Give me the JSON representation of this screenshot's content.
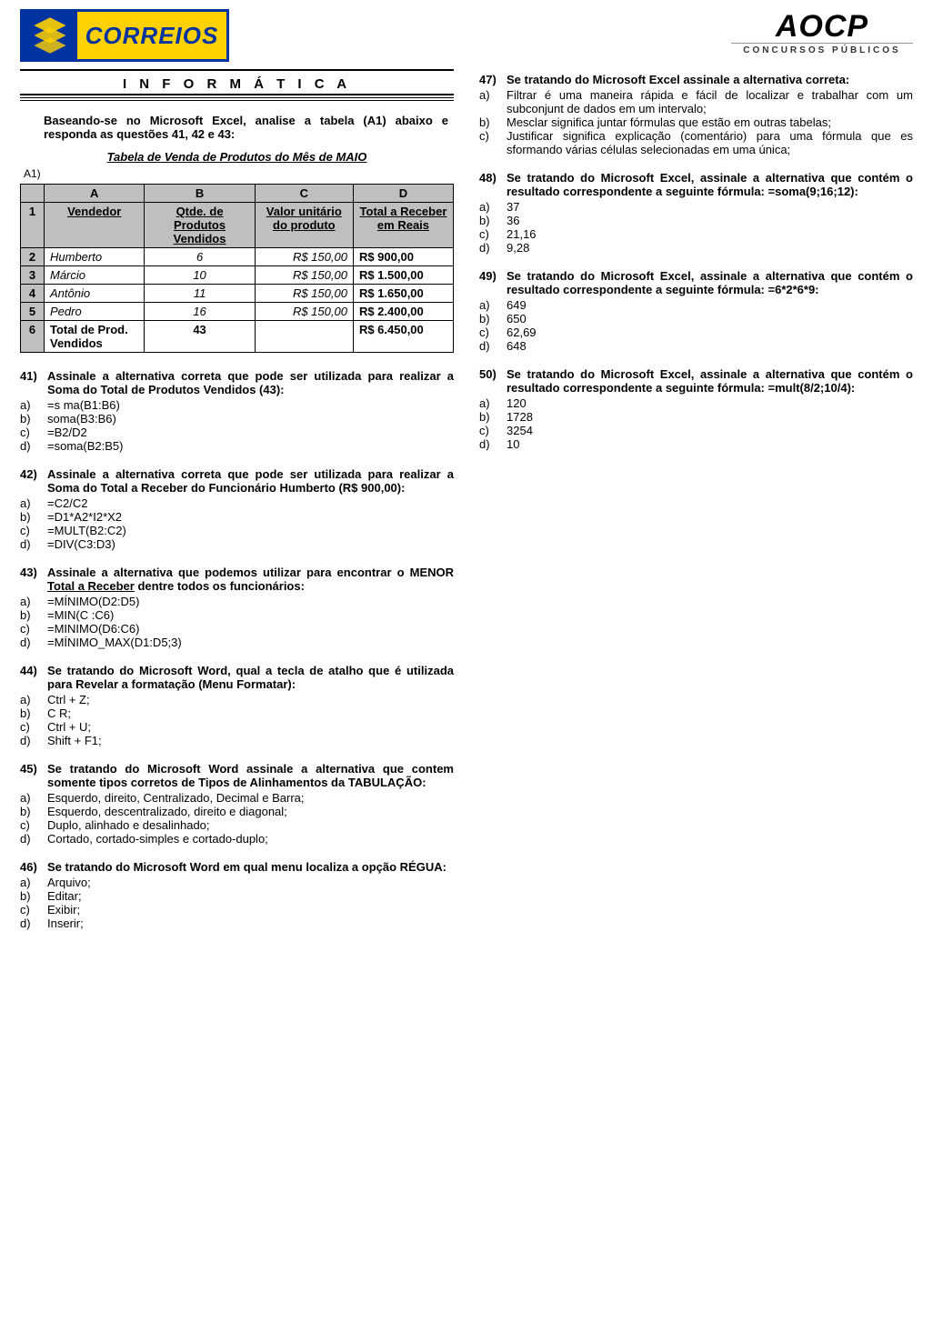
{
  "logos": {
    "correios_text": "CORREIOS",
    "aocp_text": "AOCP",
    "aocp_sub": "CONCURSOS PÚBLICOS"
  },
  "section_title": "I N F O R M Á T I C A",
  "intro": "Baseando-se no Microsoft Excel, analise a tabela (A1) abaixo e responda as questões 41, 42 e 43:",
  "table": {
    "caption": "Tabela de Venda de Produtos do Mês de MAIO",
    "a1_label": "A1)",
    "col_letters": [
      "A",
      "B",
      "C",
      "D"
    ],
    "headers": {
      "A": "Vendedor",
      "B": "Qtde. de Produtos Vendidos",
      "C": "Valor unitário do produto",
      "D": "Total a Receber em Reais"
    },
    "rows": [
      {
        "n": "2",
        "A": "Humberto",
        "B": "6",
        "C": "R$ 150,00",
        "D": "R$ 900,00"
      },
      {
        "n": "3",
        "A": "Márcio",
        "B": "10",
        "C": "R$ 150,00",
        "D": "R$ 1.500,00"
      },
      {
        "n": "4",
        "A": "Antônio",
        "B": "11",
        "C": "R$ 150,00",
        "D": "R$ 1.650,00"
      },
      {
        "n": "5",
        "A": "Pedro",
        "B": "16",
        "C": "R$ 150,00",
        "D": "R$ 2.400,00"
      }
    ],
    "total_row": {
      "n": "6",
      "A": "Total de Prod. Vendidos",
      "B": "43",
      "C": "",
      "D": "R$ 6.450,00"
    }
  },
  "questions_left": [
    {
      "num": "41)",
      "stem": "Assinale a alternativa correta que pode ser utilizada para realizar a Soma do Total de Produtos Vendidos (43):",
      "opts": [
        {
          "l": "a)",
          "t": "=s  ma(B1:B6)"
        },
        {
          "l": "b)",
          "t": "soma(B3:B6)"
        },
        {
          "l": "c)",
          "t": "=B2/D2"
        },
        {
          "l": "d)",
          "t": "=soma(B2:B5)"
        }
      ]
    },
    {
      "num": "42)",
      "stem": "Assinale a alternativa correta que pode ser utilizada para realizar a Soma do Total a Receber do Funcionário Humberto (R$ 900,00):",
      "opts": [
        {
          "l": "a)",
          "t": "=C2/C2"
        },
        {
          "l": "b)",
          "t": "=D1*A2*I2*X2"
        },
        {
          "l": "c)",
          "t": "=MULT(B2:C2)"
        },
        {
          "l": "d)",
          "t": "=DIV(C3:D3)"
        }
      ]
    },
    {
      "num": "43)",
      "stem": "Assinale a alternativa que podemos utilizar para encontrar o MENOR <u>Total a Receber</u> dentre todos os funcionários:",
      "opts": [
        {
          "l": "a)",
          "t": "=MÍNIMO(D2:D5)"
        },
        {
          "l": "b)",
          "t": "=MIN(C  :C6)"
        },
        {
          "l": "c)",
          "t": "=MINIMO(D6:C6)"
        },
        {
          "l": "d)",
          "t": "=MÍNIMO_MAX(D1:D5;3)"
        }
      ]
    },
    {
      "num": "44)",
      "stem": "Se tratando do Microsoft Word, qual a tecla de atalho que é utilizada para Revelar a formatação (Menu Formatar):",
      "opts": [
        {
          "l": "a)",
          "t": "Ctrl + Z;"
        },
        {
          "l": "b)",
          "t": "C      R;"
        },
        {
          "l": "c)",
          "t": "Ctrl + U;"
        },
        {
          "l": "d)",
          "t": "Shift + F1;"
        }
      ]
    },
    {
      "num": "45)",
      "stem": "Se tratando do Microsoft Word assinale a alternativa que contem somente tipos corretos de Tipos de Alinhamentos da TABULAÇÃO:",
      "opts": [
        {
          "l": "a)",
          "t": "Esquerdo, direito, Centralizado, Decimal e Barra;"
        },
        {
          "l": "b)",
          "t": "Esquerdo, descentralizado, direito e diagonal;"
        },
        {
          "l": "c)",
          "t": "Duplo, alinhado e desalinhado;"
        },
        {
          "l": "d)",
          "t": "Cortado, cortado-simples e cortado-duplo;"
        }
      ]
    },
    {
      "num": "46)",
      "stem": "Se tratando do Microsoft Word em qual menu localiza a opção RÉGUA:",
      "opts": [
        {
          "l": "a)",
          "t": "Arquivo;"
        },
        {
          "l": "b)",
          "t": "Editar;"
        },
        {
          "l": "c)",
          "t": "Exibir;"
        },
        {
          "l": "d)",
          "t": "Inserir;"
        }
      ]
    }
  ],
  "questions_right": [
    {
      "num": "47)",
      "stem": "Se tratando do Microsoft Excel assinale a alternativa correta:",
      "opts": [
        {
          "l": "a)",
          "t": "Filtrar é uma maneira rápida e fácil de localizar e trabalhar com um subconjunt   de dados em um intervalo;"
        },
        {
          "l": "b)",
          "t": "Mesclar significa juntar fórmulas que estão em outras tabelas;"
        },
        {
          "l": "c)",
          "t": "Justificar significa explicação (comentário) para uma fórmula que es                                                                                                    sformando várias células selecionadas em uma única;"
        }
      ]
    },
    {
      "num": "48)",
      "stem": "Se tratando do Microsoft Excel, assinale a alternativa que contém o resultado correspondente a seguinte fórmula: =soma(9;16;12):",
      "opts": [
        {
          "l": "a)",
          "t": "37"
        },
        {
          "l": "b)",
          "t": "36"
        },
        {
          "l": "c)",
          "t": "21,16"
        },
        {
          "l": "d)",
          "t": "9,28"
        }
      ]
    },
    {
      "num": "49)",
      "stem": "Se tratando do Microsoft Excel, assinale a alternativa que contém o resultado correspondente a seguinte fórmula: =6*2*6*9:",
      "opts": [
        {
          "l": "a)",
          "t": "649"
        },
        {
          "l": "b)",
          "t": "650"
        },
        {
          "l": "c)",
          "t": "62,69"
        },
        {
          "l": "d)",
          "t": "648"
        }
      ]
    },
    {
      "num": "50)",
      "stem": "Se tratando do Microsoft Excel, assinale a alternativa que contém o resultado correspondente a seguinte fórmula: =mult(8/2;10/4):",
      "opts": [
        {
          "l": "a)",
          "t": "120"
        },
        {
          "l": "b)",
          "t": "1728"
        },
        {
          "l": "c)",
          "t": "3254"
        },
        {
          "l": "d)",
          "t": "10"
        }
      ]
    }
  ]
}
